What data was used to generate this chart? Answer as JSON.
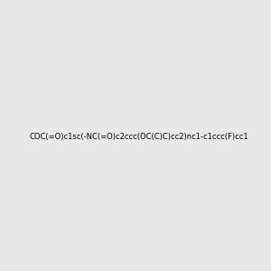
{
  "smiles": "COC(=O)c1sc(-NC(=O)c2ccc(OC(C)C)cc2)nc1-c1ccc(F)cc1",
  "background_color": "#e8e8e8",
  "figsize": [
    3.0,
    3.0
  ],
  "dpi": 100,
  "img_size": [
    300,
    300
  ]
}
